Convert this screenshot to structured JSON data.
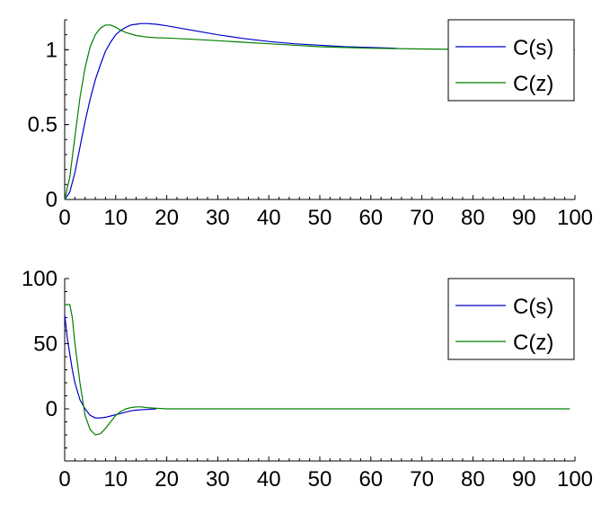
{
  "chart_data": [
    {
      "type": "line",
      "title": "",
      "xlabel": "",
      "ylabel": "",
      "xlim": [
        0,
        100
      ],
      "ylim": [
        0,
        1.2
      ],
      "x_ticks": [
        0,
        10,
        20,
        30,
        40,
        50,
        60,
        70,
        80,
        90,
        100
      ],
      "x_tick_labels": [
        "0",
        "10",
        "20",
        "30",
        "40",
        "50",
        "60",
        "70",
        "80",
        "90",
        "100"
      ],
      "y_ticks": [
        0,
        0.5,
        1
      ],
      "y_tick_labels": [
        "0",
        "0.5",
        "1"
      ],
      "grid": false,
      "legend_position": "top-right",
      "series": [
        {
          "name": "C(s)",
          "color": "#0000cc",
          "x": [
            0,
            1,
            2,
            3,
            4,
            5,
            6,
            7,
            8,
            9,
            10,
            11,
            12,
            13,
            14,
            15,
            16,
            18,
            20,
            25,
            30,
            35,
            40,
            45,
            50,
            55,
            60,
            65
          ],
          "y": [
            0,
            0.05,
            0.18,
            0.35,
            0.52,
            0.67,
            0.8,
            0.9,
            0.99,
            1.05,
            1.1,
            1.13,
            1.15,
            1.165,
            1.17,
            1.175,
            1.175,
            1.17,
            1.16,
            1.13,
            1.1,
            1.075,
            1.055,
            1.04,
            1.03,
            1.02,
            1.015,
            1.01
          ]
        },
        {
          "name": "C(z)",
          "color": "#008000",
          "x": [
            0,
            1,
            2,
            3,
            4,
            5,
            6,
            7,
            8,
            9,
            10,
            11,
            12,
            14,
            16,
            18,
            20,
            25,
            30,
            35,
            40,
            45,
            50,
            60,
            70,
            80,
            90,
            100
          ],
          "y": [
            0,
            0.15,
            0.42,
            0.68,
            0.88,
            1.02,
            1.1,
            1.145,
            1.165,
            1.165,
            1.15,
            1.13,
            1.115,
            1.095,
            1.085,
            1.08,
            1.078,
            1.07,
            1.06,
            1.05,
            1.04,
            1.03,
            1.02,
            1.01,
            1.005,
            1.002,
            1.001,
            1.0
          ]
        }
      ]
    },
    {
      "type": "line",
      "title": "",
      "xlabel": "",
      "ylabel": "",
      "xlim": [
        0,
        100
      ],
      "ylim": [
        -40,
        100
      ],
      "x_ticks": [
        0,
        10,
        20,
        30,
        40,
        50,
        60,
        70,
        80,
        90,
        100
      ],
      "x_tick_labels": [
        "0",
        "10",
        "20",
        "30",
        "40",
        "50",
        "60",
        "70",
        "80",
        "90",
        "100"
      ],
      "y_ticks": [
        0,
        50,
        100
      ],
      "y_tick_labels": [
        "0",
        "50",
        "100"
      ],
      "grid": false,
      "legend_position": "top-right",
      "series": [
        {
          "name": "C(s)",
          "color": "#0000cc",
          "x": [
            0,
            0.5,
            1,
            1.5,
            2,
            3,
            4,
            5,
            6,
            7,
            8,
            9,
            10,
            11,
            12,
            13,
            14,
            16,
            18
          ],
          "y": [
            72,
            55,
            42,
            30,
            20,
            7,
            0,
            -5,
            -7,
            -7,
            -6.5,
            -5.5,
            -4.5,
            -3.5,
            -2.5,
            -1.5,
            -1,
            -0.5,
            0
          ]
        },
        {
          "name": "C(z)",
          "color": "#008000",
          "x": [
            0,
            1,
            1.5,
            2,
            3,
            4,
            5,
            6,
            7,
            8,
            9,
            10,
            11,
            12,
            13,
            14,
            15,
            16,
            18,
            20,
            30,
            50,
            70,
            99
          ],
          "y": [
            80,
            80,
            70,
            50,
            20,
            -5,
            -16,
            -20,
            -19,
            -15,
            -10,
            -5,
            -2,
            0,
            1,
            1.5,
            1.5,
            1,
            0.5,
            0,
            0,
            0,
            0,
            0
          ]
        }
      ]
    }
  ]
}
